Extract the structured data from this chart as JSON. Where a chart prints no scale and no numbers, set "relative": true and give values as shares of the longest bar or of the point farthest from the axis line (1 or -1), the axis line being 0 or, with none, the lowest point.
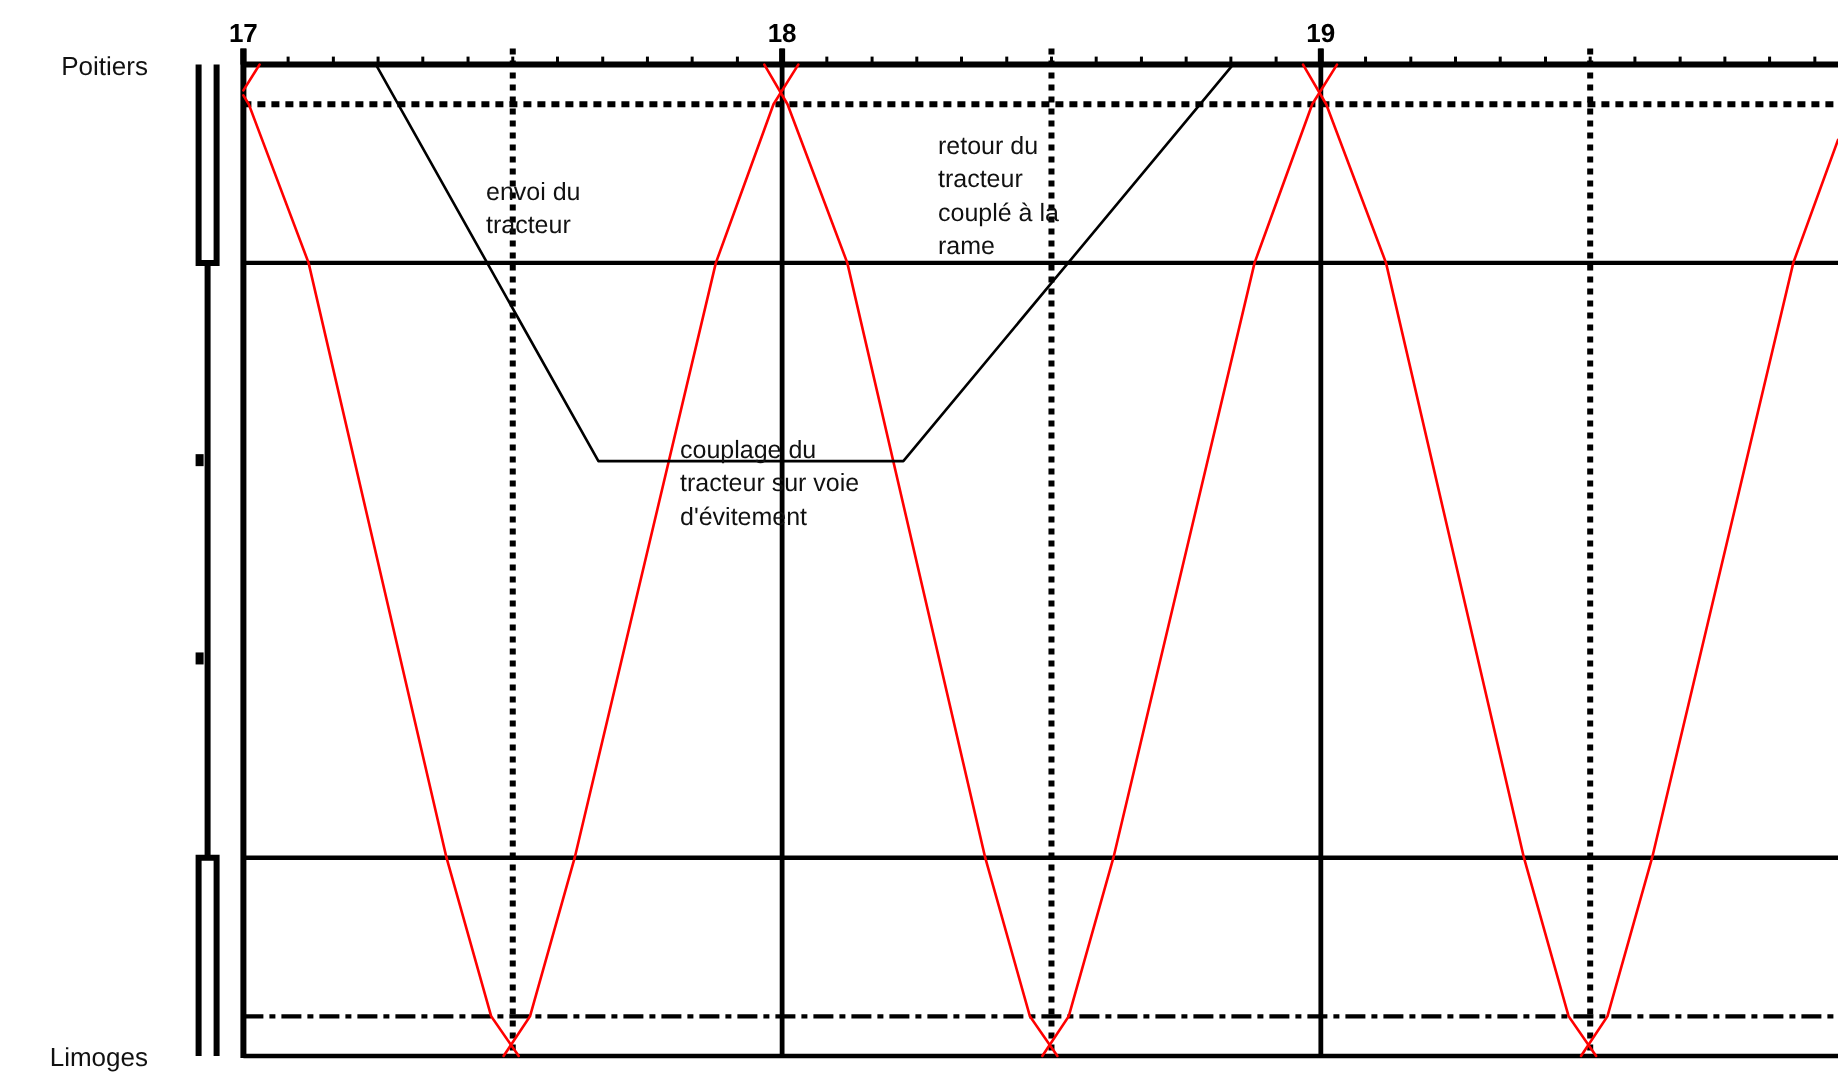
{
  "chart_data": {
    "type": "line",
    "relative": true,
    "xlim": [
      17,
      19.96
    ],
    "xticks": [
      17,
      {
        "value": 17.083,
        "label": null
      },
      {
        "value": 17.167,
        "label": null
      },
      {
        "value": 17.25,
        "label": null
      },
      {
        "value": 17.333,
        "label": null
      },
      {
        "value": 17.417,
        "label": null
      },
      {
        "value": 17.5,
        "label": null
      },
      {
        "value": 17.583,
        "label": null
      },
      {
        "value": 17.667,
        "label": null
      },
      {
        "value": 17.75,
        "label": null
      },
      {
        "value": 17.833,
        "label": null
      },
      {
        "value": 17.917,
        "label": null
      },
      18,
      {
        "value": 18.083,
        "label": null
      },
      {
        "value": 18.167,
        "label": null
      },
      {
        "value": 18.25,
        "label": null
      },
      {
        "value": 18.333,
        "label": null
      },
      {
        "value": 18.417,
        "label": null
      },
      {
        "value": 18.5,
        "label": null
      },
      {
        "value": 18.583,
        "label": null
      },
      {
        "value": 18.667,
        "label": null
      },
      {
        "value": 18.75,
        "label": null
      },
      {
        "value": 18.833,
        "label": null
      },
      {
        "value": 18.917,
        "label": null
      },
      19,
      {
        "value": 19.083,
        "label": null
      },
      {
        "value": 19.167,
        "label": null
      },
      {
        "value": 19.25,
        "label": null
      },
      {
        "value": 19.333,
        "label": null
      },
      {
        "value": 19.417,
        "label": null
      },
      {
        "value": 19.5,
        "label": null
      },
      {
        "value": 19.583,
        "label": null
      },
      {
        "value": 19.667,
        "label": null
      },
      {
        "value": 19.75,
        "label": null
      },
      {
        "value": 19.833,
        "label": null
      },
      {
        "value": 19.917,
        "label": null
      }
    ],
    "series": [
      {
        "color": "#ff0000",
        "x": [
          17,
          17.03
        ],
        "values": [
          0.974,
          1
        ]
      },
      {
        "color": "#ff0000",
        "x": [
          17,
          17.01,
          17.121,
          17.377,
          17.46,
          17.511
        ],
        "values": [
          0.969,
          0.96,
          0.8,
          0.2,
          0.04,
          0
        ]
      },
      {
        "color": "#ff0000",
        "x": [
          17.483,
          17.532,
          17.615,
          17.877,
          17.984,
          18.03
        ],
        "values": [
          0,
          0.04,
          0.2,
          0.8,
          0.96,
          1
        ]
      },
      {
        "color": "#ff0000",
        "x": [
          17.967,
          18.01,
          18.121,
          18.377,
          18.46,
          18.511
        ],
        "values": [
          1,
          0.96,
          0.8,
          0.2,
          0.04,
          0
        ]
      },
      {
        "color": "#ff0000",
        "x": [
          18.483,
          18.532,
          18.615,
          18.877,
          18.984,
          19.03
        ],
        "values": [
          0,
          0.04,
          0.2,
          0.8,
          0.96,
          1
        ]
      },
      {
        "color": "#ff0000",
        "x": [
          18.967,
          19.01,
          19.121,
          19.377,
          19.46,
          19.511
        ],
        "values": [
          1,
          0.96,
          0.8,
          0.2,
          0.04,
          0
        ]
      },
      {
        "color": "#ff0000",
        "x": [
          19.483,
          19.532,
          19.615,
          19.877,
          19.96
        ],
        "values": [
          0,
          0.04,
          0.2,
          0.8,
          0.924
        ]
      },
      {
        "color": "#000000",
        "x": [
          17.246,
          17.659,
          18.225,
          18.837
        ],
        "values": [
          1,
          0.6,
          0.6,
          1
        ]
      }
    ],
    "ref_lines": [
      {
        "axis": "x",
        "value": 17.5,
        "line_style": "dotted"
      },
      {
        "axis": "x",
        "value": 18,
        "line_style": "solid"
      },
      {
        "axis": "x",
        "value": 18.5,
        "line_style": "dotted"
      },
      {
        "axis": "x",
        "value": 19,
        "line_style": "solid"
      },
      {
        "axis": "x",
        "value": 19.5,
        "line_style": "dotted"
      },
      {
        "axis": "y",
        "value": 0.96,
        "line_style": "dotted"
      },
      {
        "axis": "y",
        "value": 0.8,
        "line_style": "solid"
      },
      {
        "axis": "y",
        "value": 0.2,
        "line_style": "solid"
      },
      {
        "axis": "y",
        "value": 0.04,
        "line_style": "dashed"
      }
    ],
    "annotations": [
      "Poitiers",
      "Limoges",
      "envoi du\ntracteur",
      "couplage du\ntracteur sur voie\nd'évitement",
      "retour du\ntracteur\ncouplé à la\nrame"
    ]
  }
}
